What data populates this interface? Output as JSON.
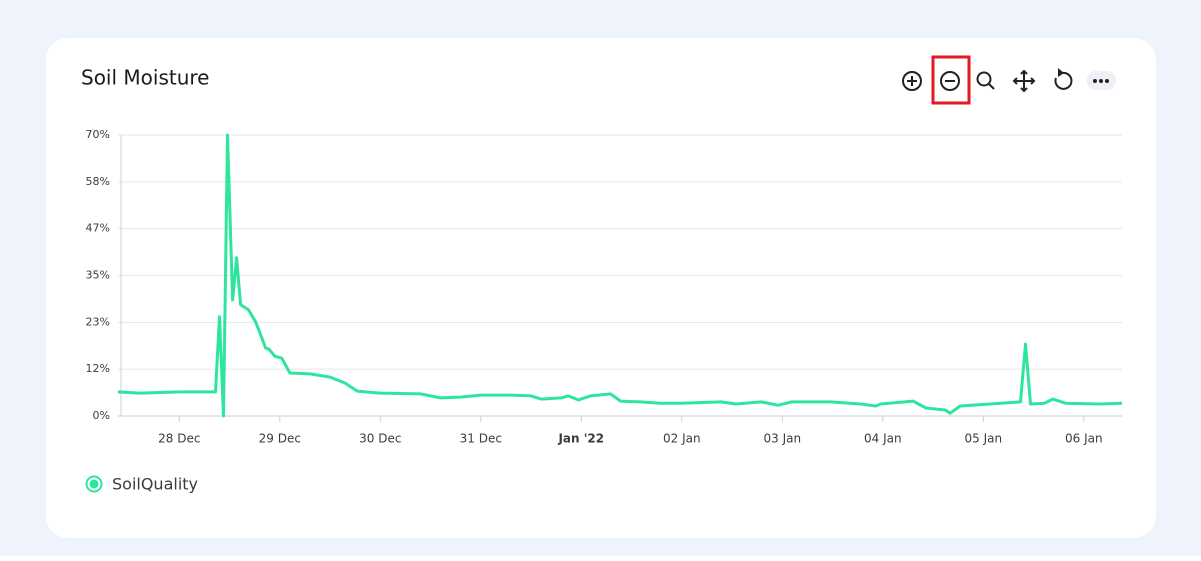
{
  "chart_data": {
    "type": "line",
    "title": "Soil Moisture",
    "x": [
      -0.61,
      -0.39,
      0.01,
      0.36,
      0.4,
      0.44,
      0.48,
      0.53,
      0.57,
      0.61,
      0.69,
      0.76,
      0.81,
      0.86,
      0.89,
      0.95,
      1.02,
      1.1,
      1.3,
      1.5,
      1.65,
      1.77,
      2.0,
      2.4,
      2.6,
      2.8,
      3.0,
      3.3,
      3.5,
      3.6,
      3.8,
      3.87,
      3.97,
      4.09,
      4.29,
      4.39,
      4.59,
      4.79,
      4.99,
      5.39,
      5.54,
      5.79,
      5.96,
      6.09,
      6.48,
      6.78,
      6.93,
      6.98,
      7.3,
      7.43,
      7.62,
      7.67,
      7.77,
      8.07,
      8.37,
      8.42,
      8.47,
      8.61,
      8.69,
      8.82,
      9.16,
      9.38
    ],
    "series": [
      {
        "name": "SoilQuality",
        "color": "#2ee59d",
        "values": [
          6.0,
          5.7,
          6.0,
          6.0,
          24.7,
          0,
          70,
          28.9,
          39.4,
          27.7,
          26.4,
          23.4,
          20.2,
          16.9,
          16.7,
          14.9,
          14.4,
          10.7,
          10.5,
          9.7,
          8.2,
          6.2,
          5.7,
          5.5,
          4.5,
          4.7,
          5.2,
          5.2,
          5.0,
          4.2,
          4.5,
          5.0,
          4.0,
          5.0,
          5.5,
          3.7,
          3.5,
          3.2,
          3.2,
          3.5,
          3.0,
          3.5,
          2.7,
          3.5,
          3.5,
          3.0,
          2.5,
          3.0,
          3.7,
          2.0,
          1.5,
          0.7,
          2.5,
          3.0,
          3.5,
          17.9,
          3.0,
          3.2,
          4.2,
          3.2,
          3.0,
          3.2
        ]
      }
    ],
    "xlim": [
      -0.61,
      9.38
    ],
    "xticks": [
      {
        "value": 0,
        "label": "28 Dec"
      },
      {
        "value": 1,
        "label": "29 Dec"
      },
      {
        "value": 2,
        "label": "30 Dec"
      },
      {
        "value": 3,
        "label": "31 Dec"
      },
      {
        "value": 4,
        "label": "Jan '22"
      },
      {
        "value": 5,
        "label": "02 Jan"
      },
      {
        "value": 6,
        "label": "03 Jan"
      },
      {
        "value": 7,
        "label": "04 Jan"
      },
      {
        "value": 8,
        "label": "05 Jan"
      },
      {
        "value": 9,
        "label": "06 Jan"
      }
    ],
    "ylim": [
      0,
      70
    ],
    "yticks": [
      {
        "value": 0,
        "label": "0%"
      },
      {
        "value": 11.67,
        "label": "12%"
      },
      {
        "value": 23.33,
        "label": "23%"
      },
      {
        "value": 35,
        "label": "35%"
      },
      {
        "value": 46.67,
        "label": "47%"
      },
      {
        "value": 58.33,
        "label": "58%"
      },
      {
        "value": 70,
        "label": "70%"
      }
    ],
    "grid": true
  }
}
